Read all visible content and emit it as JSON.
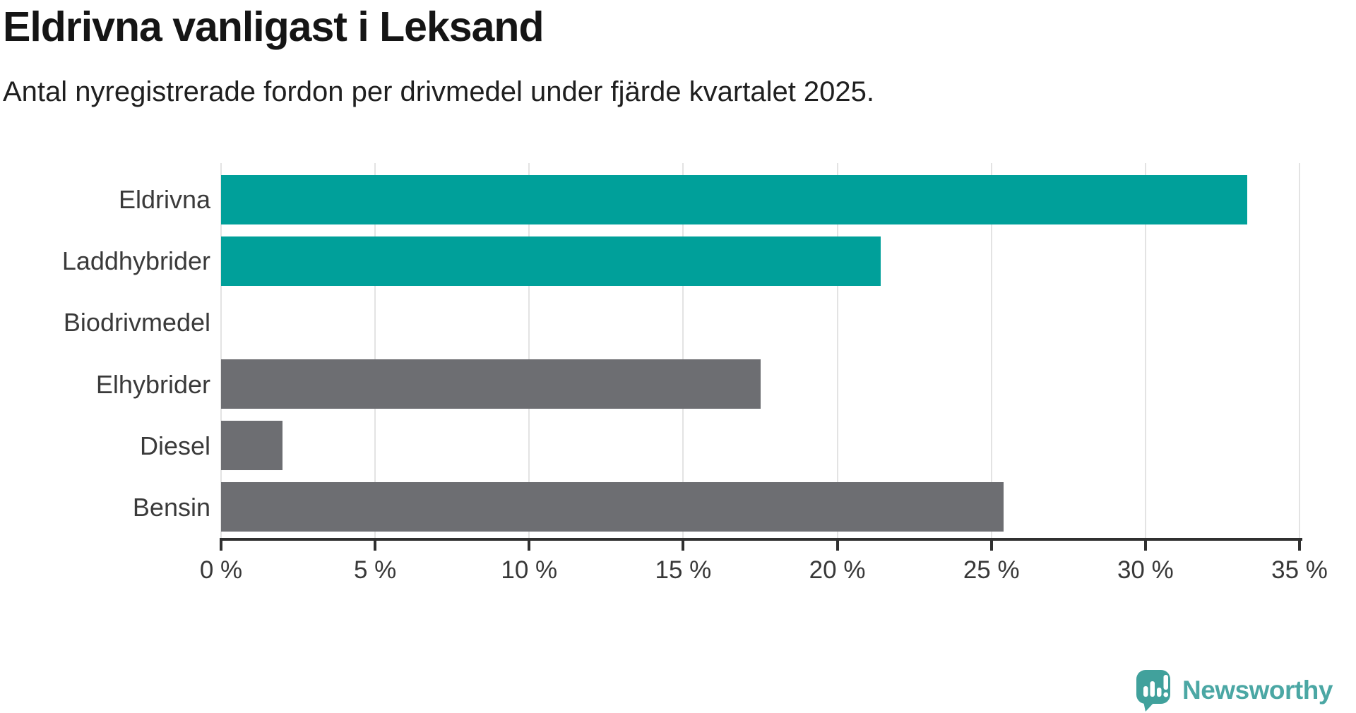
{
  "title": "Eldrivna vanligast i Leksand",
  "subtitle": "Antal nyregistrerade fordon per drivmedel under fjärde kvartalet 2025.",
  "chart_data": {
    "type": "bar",
    "orientation": "horizontal",
    "title": "Eldrivna vanligast i Leksand",
    "subtitle": "Antal nyregistrerade fordon per drivmedel under fjärde kvartalet 2025.",
    "categories": [
      "Eldrivna",
      "Laddhybrider",
      "Biodrivmedel",
      "Elhybrider",
      "Diesel",
      "Bensin"
    ],
    "values": [
      33.3,
      21.4,
      0,
      17.5,
      2.0,
      25.4
    ],
    "unit": "%",
    "xlim": [
      0,
      35
    ],
    "x_ticks": [
      0,
      5,
      10,
      15,
      20,
      25,
      30,
      35
    ],
    "x_tick_labels": [
      "0 %",
      "5 %",
      "10 %",
      "15 %",
      "20 %",
      "25 %",
      "30 %",
      "35 %"
    ],
    "grid": true,
    "legend": false,
    "highlight_color": "#00A09A",
    "default_color": "#6D6E72",
    "bar_colors": [
      "#00A09A",
      "#00A09A",
      "#00A09A",
      "#6D6E72",
      "#6D6E72",
      "#6D6E72"
    ],
    "gridline_color": "#e3e3e3",
    "axis_color": "#303030",
    "label_color": "#3a3a3a"
  },
  "footer": {
    "brand": "Newsworthy",
    "brand_color": "#4BA7A4",
    "logo_icon_color": "#41A19C"
  }
}
